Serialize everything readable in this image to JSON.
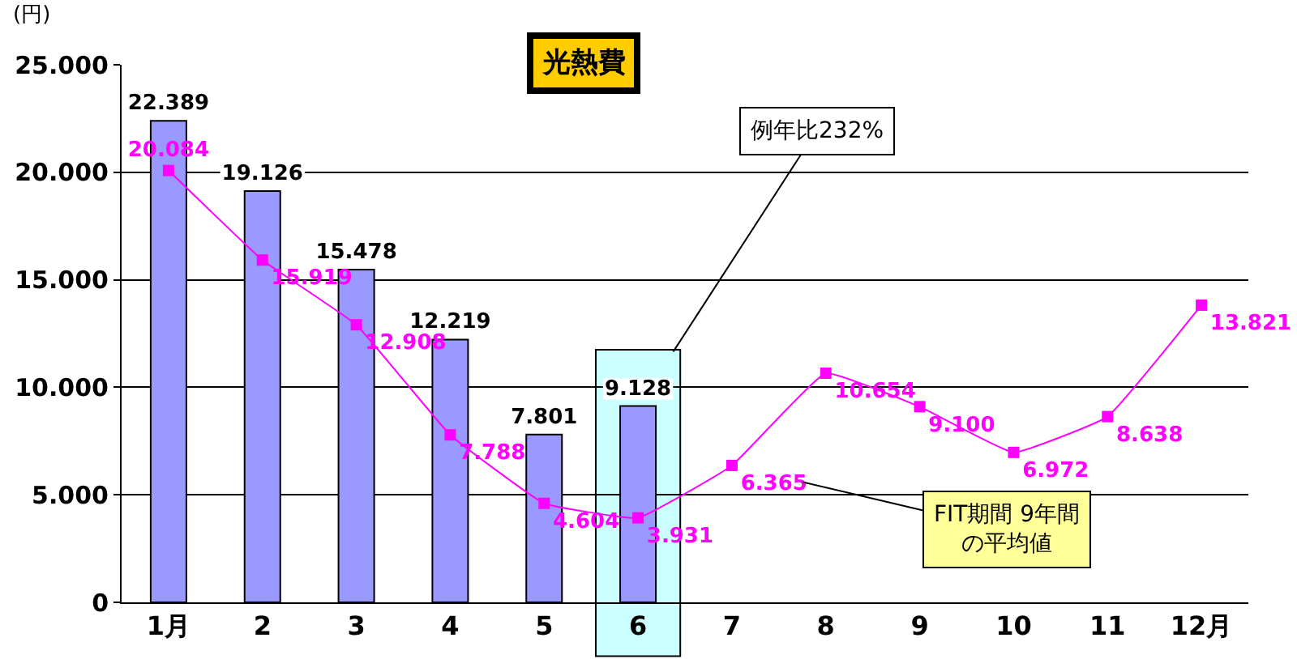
{
  "chart_data": {
    "type": "bar",
    "title": "光熱費",
    "ylabel": "(円)",
    "categories": [
      "1月",
      "2",
      "3",
      "4",
      "5",
      "6",
      "7",
      "8",
      "9",
      "10",
      "11",
      "12月"
    ],
    "series": [
      {
        "color": "#9999ff",
        "values": [
          22389,
          19126,
          15478,
          12219,
          7801,
          9128,
          null,
          null,
          null,
          null,
          null,
          null
        ],
        "value_labels": [
          "22.389",
          "19.126",
          "15.478",
          "12.219",
          "7.801",
          "9.128",
          null,
          null,
          null,
          null,
          null,
          null
        ]
      },
      {
        "type": "line",
        "color": "#ff00ff",
        "marker": "square",
        "values": [
          20084,
          15919,
          12908,
          7788,
          4604,
          3931,
          6365,
          10654,
          9100,
          6972,
          8638,
          13821
        ],
        "value_labels": [
          "20.084",
          "15.919",
          "12.908",
          "7.788",
          "4.604",
          "3.931",
          "6.365",
          "10.654",
          "9.100",
          "6.972",
          "8.638",
          "13.821"
        ]
      }
    ],
    "ylim": [
      0,
      25000
    ],
    "yticks": [
      {
        "value": 0,
        "label": "0"
      },
      {
        "value": 5000,
        "label": "5.000"
      },
      {
        "value": 10000,
        "label": "10.000"
      },
      {
        "value": 15000,
        "label": "15.000"
      },
      {
        "value": 20000,
        "label": "20.000"
      },
      {
        "value": 25000,
        "label": "25.000"
      }
    ],
    "grid": "y",
    "legend": false,
    "bands": [
      {
        "axis": "x",
        "from": "6",
        "to": "6",
        "color": "#ccffff"
      }
    ],
    "annotations": [
      {
        "text": "例年比232%",
        "x": "6",
        "y": 9128
      },
      {
        "text": "FIT期間 9年間の平均値",
        "x": "7",
        "y": 6365
      }
    ]
  }
}
